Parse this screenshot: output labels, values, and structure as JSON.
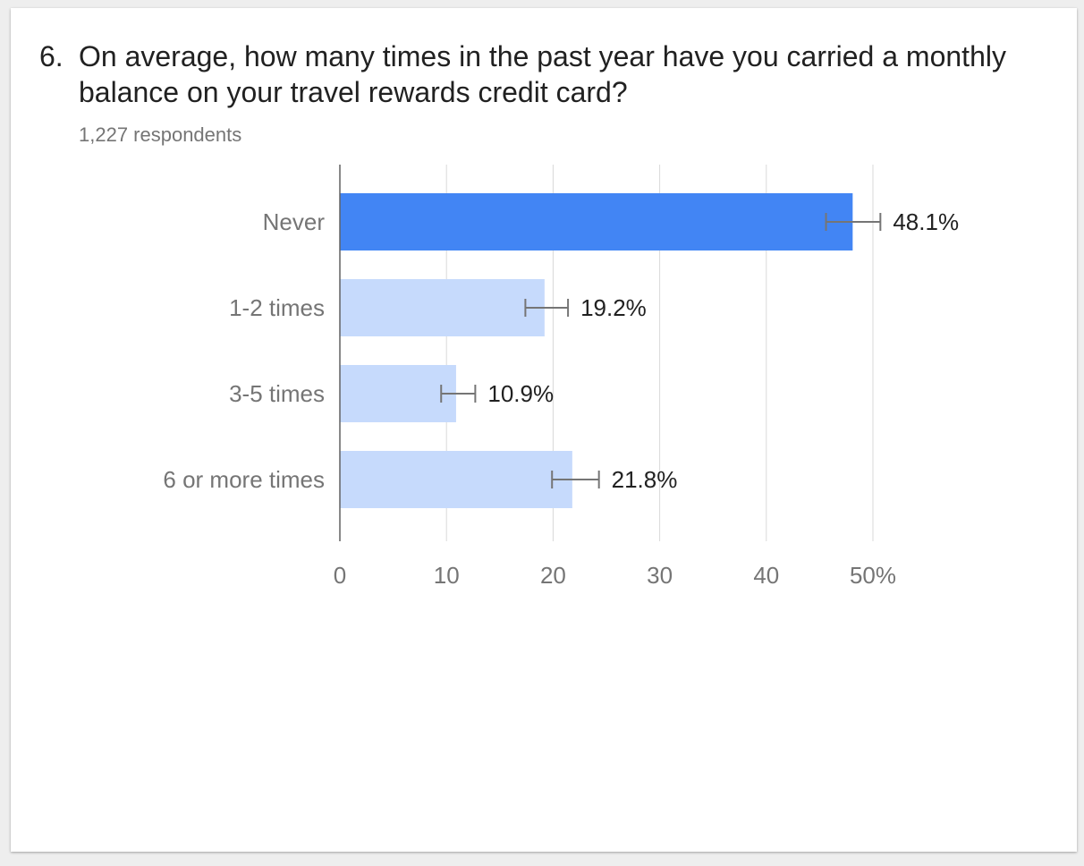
{
  "question": {
    "number": "6.",
    "text": "On average, how many times in the past year have you carried a monthly balance on your travel rewards credit card?",
    "respondents": "1,227 respondents"
  },
  "colors": {
    "highlight_bar": "#4285f4",
    "bar": "#c6dafc",
    "grid": "#d9d9d9",
    "axis": "#616161",
    "error_bar": "#757575"
  },
  "chart_data": {
    "type": "bar",
    "orientation": "horizontal",
    "categories": [
      "Never",
      "1-2 times",
      "3-5 times",
      "6 or more times"
    ],
    "values": [
      48.1,
      19.2,
      10.9,
      21.8
    ],
    "value_labels": [
      "48.1%",
      "19.2%",
      "10.9%",
      "21.8%"
    ],
    "error_bars": [
      [
        45.6,
        50.7
      ],
      [
        17.4,
        21.4
      ],
      [
        9.5,
        12.7
      ],
      [
        19.9,
        24.3
      ]
    ],
    "highlight_index": 0,
    "xlim": [
      0,
      50
    ],
    "xticks": [
      0,
      10,
      20,
      30,
      40,
      50
    ],
    "xtick_labels": [
      "0",
      "10",
      "20",
      "30",
      "40",
      "50%"
    ],
    "grid": true,
    "title": "",
    "xlabel": "",
    "ylabel": ""
  }
}
